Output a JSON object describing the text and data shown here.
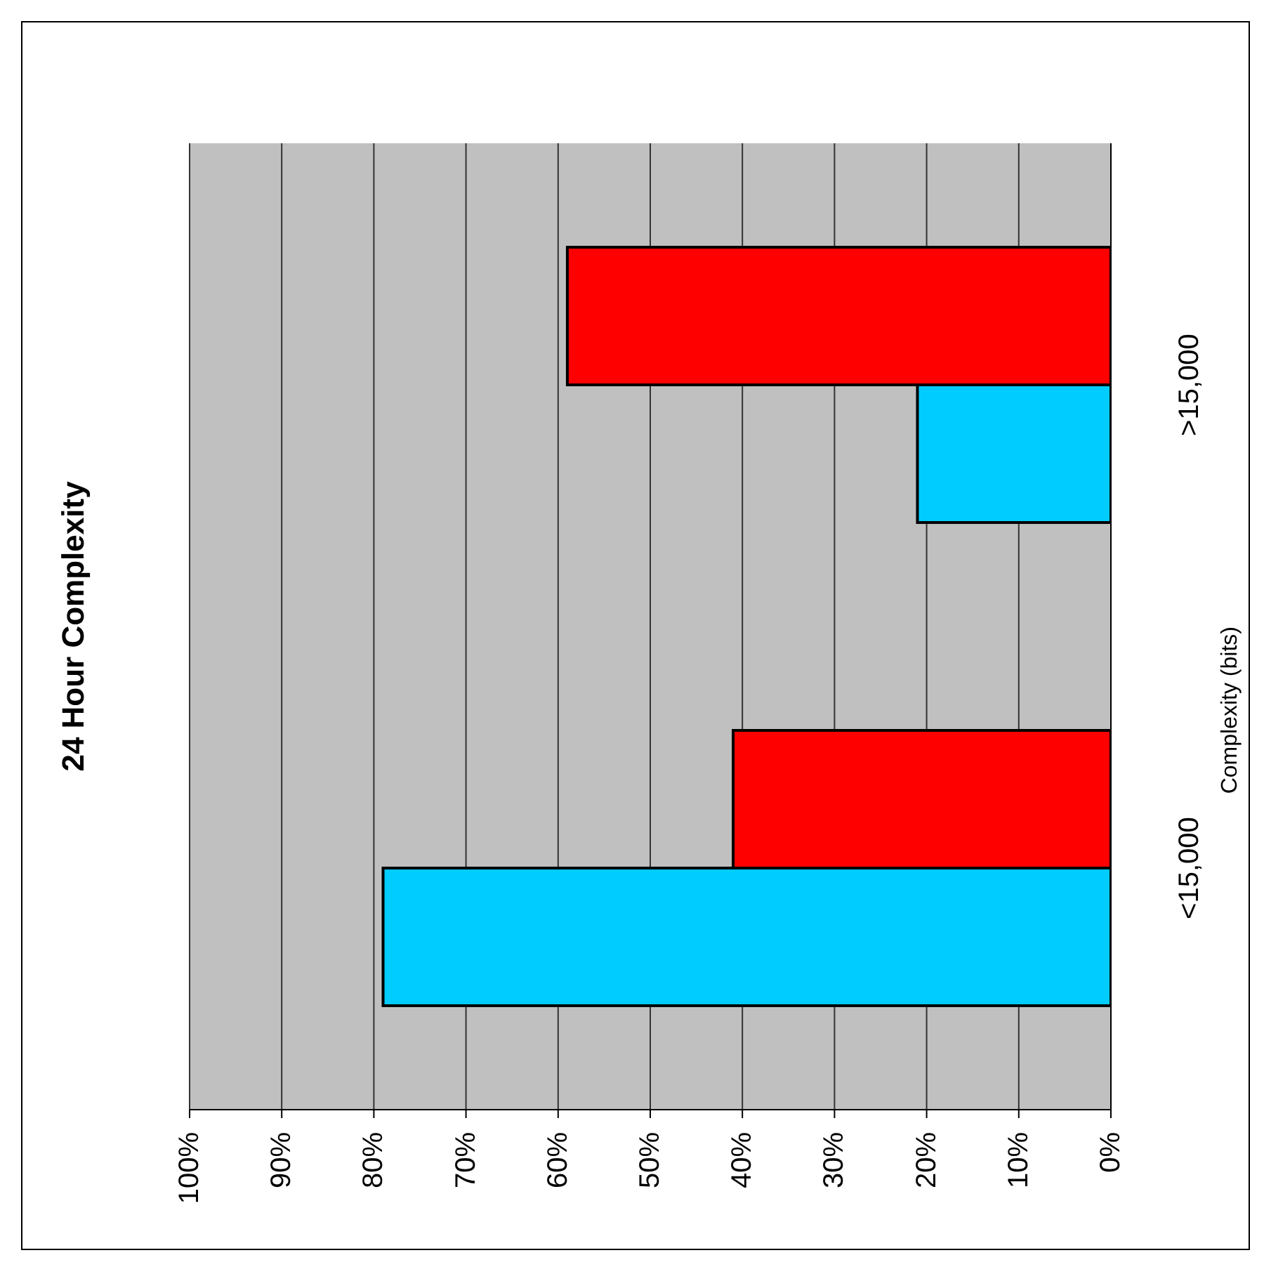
{
  "chart_data": {
    "type": "bar",
    "orientation": "horizontal",
    "title": "24 Hour Complexity",
    "ylabel": "Complexity (bits)",
    "categories": [
      ">15,000",
      "<15,000"
    ],
    "series": [
      {
        "color": "#ff0000",
        "values": [
          59,
          41
        ]
      },
      {
        "color": "#00ccff",
        "values": [
          21,
          79
        ]
      }
    ],
    "xlim": [
      100,
      0
    ],
    "xticks": [
      {
        "value": 100,
        "label": "100%"
      },
      {
        "value": 90,
        "label": "90%"
      },
      {
        "value": 80,
        "label": "80%"
      },
      {
        "value": 70,
        "label": "70%"
      },
      {
        "value": 60,
        "label": "60%"
      },
      {
        "value": 50,
        "label": "50%"
      },
      {
        "value": 40,
        "label": "40%"
      },
      {
        "value": 30,
        "label": "30%"
      },
      {
        "value": 20,
        "label": "20%"
      },
      {
        "value": 10,
        "label": "10%"
      },
      {
        "value": 0,
        "label": "0%"
      }
    ],
    "grid": "x"
  }
}
